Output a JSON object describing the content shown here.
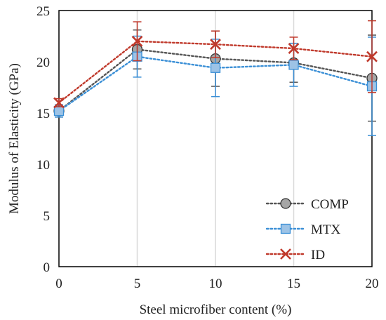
{
  "chart_data": {
    "type": "line",
    "title": "",
    "xlabel": "Steel microfiber content (%)",
    "ylabel": "Modulus of Elasticity (GPa)",
    "xlim": [
      0,
      20
    ],
    "ylim": [
      0,
      25
    ],
    "x_ticks": [
      "0",
      "5",
      "10",
      "15",
      "20"
    ],
    "y_ticks": [
      "0",
      "5",
      "10",
      "15",
      "20",
      "25"
    ],
    "x": [
      0,
      5,
      10,
      15,
      20
    ],
    "grid": "vertical",
    "legend_position": "bottom-right",
    "series": [
      {
        "name": "COMP",
        "marker": "circle",
        "color": "#555555",
        "marker_fill": "#a6a6a6",
        "values": [
          15.2,
          21.2,
          20.3,
          19.9,
          18.4
        ],
        "err_low": [
          0.6,
          1.9,
          2.7,
          1.9,
          4.2
        ],
        "err_high": [
          0.6,
          1.9,
          2.7,
          1.9,
          4.2
        ]
      },
      {
        "name": "MTX",
        "marker": "square",
        "color": "#3a8fd6",
        "marker_fill": "#9dc3e6",
        "values": [
          15.2,
          20.5,
          19.4,
          19.7,
          17.6
        ],
        "err_low": [
          0.6,
          2.0,
          2.8,
          2.1,
          4.8
        ],
        "err_high": [
          0.6,
          2.0,
          2.8,
          2.1,
          4.8
        ]
      },
      {
        "name": "ID",
        "marker": "x",
        "color": "#c0392b",
        "marker_fill": "#c0392b",
        "values": [
          16.0,
          22.0,
          21.7,
          21.3,
          20.5
        ],
        "err_low": [
          0.4,
          1.9,
          1.3,
          1.1,
          3.5
        ],
        "err_high": [
          0.4,
          1.9,
          1.3,
          1.1,
          3.5
        ]
      }
    ]
  }
}
